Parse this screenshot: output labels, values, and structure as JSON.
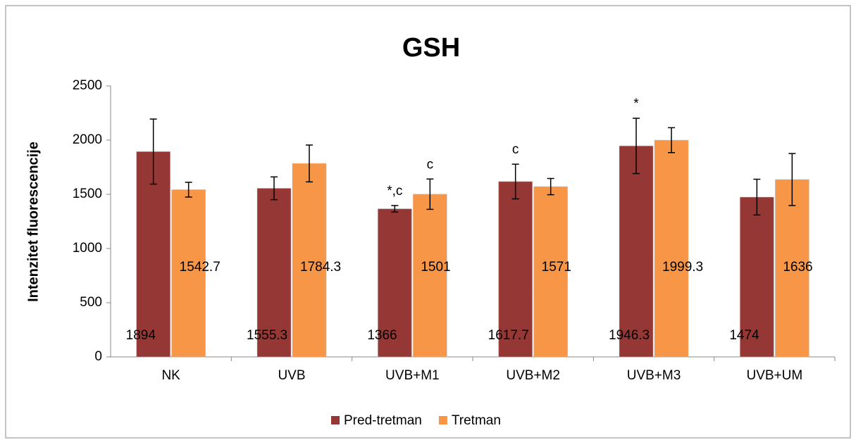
{
  "chart_data": {
    "type": "bar",
    "title": "GSH",
    "y_label": "Intenzitet fluorescencije",
    "categories": [
      "NK",
      "UVB",
      "UVB+M1",
      "UVB+M2",
      "UVB+M3",
      "UVB+UM"
    ],
    "series": [
      {
        "name": "Pred-tretman",
        "color": "#953735",
        "values": [
          1894,
          1555.3,
          1366,
          1617.7,
          1946.3,
          1474
        ],
        "errors": [
          300,
          105,
          30,
          160,
          255,
          165
        ]
      },
      {
        "name": "Tretman",
        "color": "#f79646",
        "values": [
          1542.7,
          1784.3,
          1501,
          1571,
          1999.3,
          1636
        ],
        "errors": [
          68,
          170,
          140,
          75,
          115,
          240
        ]
      }
    ],
    "annotations": [
      {
        "category": 2,
        "series": 0,
        "text": "*,c"
      },
      {
        "category": 2,
        "series": 1,
        "text": "c"
      },
      {
        "category": 3,
        "series": 0,
        "text": "c"
      },
      {
        "category": 4,
        "series": 0,
        "text": "*"
      }
    ],
    "ylim": [
      0,
      2500
    ],
    "yticks": [
      0,
      500,
      1000,
      1500,
      2000,
      2500
    ],
    "grid": false,
    "legend": "bottom"
  }
}
